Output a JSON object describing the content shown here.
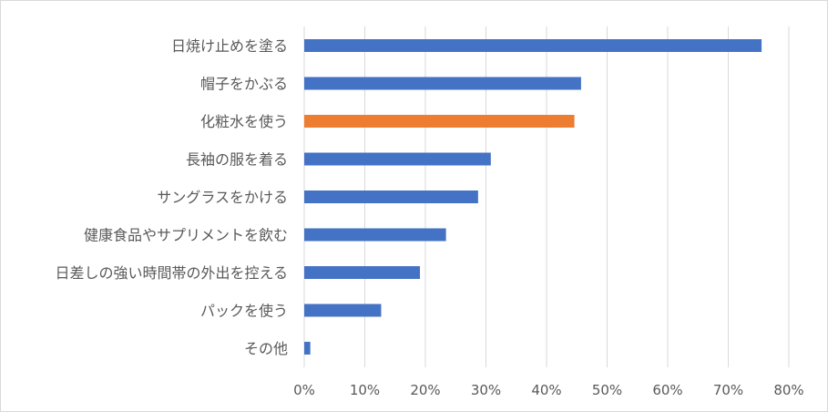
{
  "chart_data": {
    "type": "bar",
    "orientation": "horizontal",
    "title": "",
    "xlabel": "",
    "ylabel": "",
    "categories": [
      "日焼け止めを塗る",
      "帽子をかぶる",
      "化粧水を使う",
      "長袖の服を着る",
      "サングラスをかける",
      "健康食品やサプリメントを飲む",
      "日差しの強い時間帯の外出を控える",
      "パックを使う",
      "その他"
    ],
    "values": [
      75.5,
      45.7,
      44.6,
      30.8,
      28.7,
      23.4,
      19.1,
      12.7,
      1.0
    ],
    "highlight_index": 2,
    "xlim": [
      0,
      80
    ],
    "x_ticks": [
      0,
      10,
      20,
      30,
      40,
      50,
      60,
      70,
      80
    ],
    "x_tick_labels": [
      "0%",
      "10%",
      "20%",
      "30%",
      "40%",
      "50%",
      "60%",
      "70%",
      "80%"
    ],
    "grid": true,
    "legend": "none",
    "colors": {
      "bar": "#4472c4",
      "highlight": "#ed7d31",
      "grid": "#d9d9d9",
      "text": "#595959",
      "border": "#d9d9d9"
    }
  }
}
